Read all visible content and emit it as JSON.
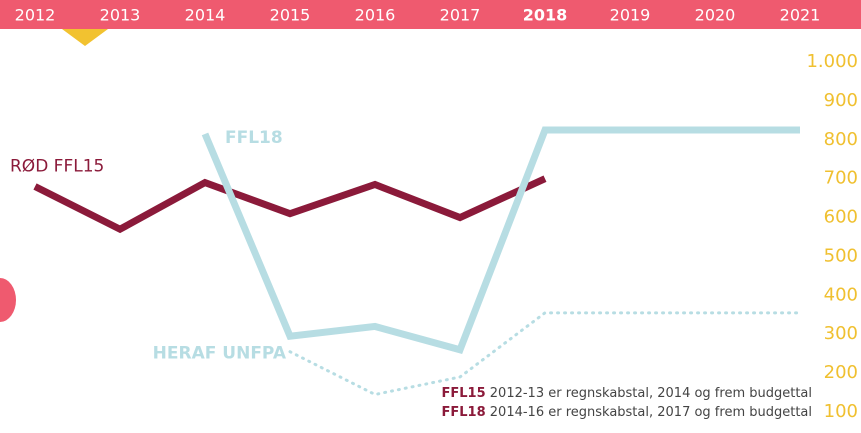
{
  "chart_data": {
    "type": "line",
    "categories": [
      "2012",
      "2013",
      "2014",
      "2015",
      "2016",
      "2017",
      "2018",
      "2019",
      "2020",
      "2021"
    ],
    "highlight": "2018",
    "series": [
      {
        "name": "RØD FFL15",
        "color": "#8b1a3a",
        "style": "solid",
        "values": [
          680,
          570,
          690,
          610,
          685,
          600,
          700,
          null,
          null,
          null
        ]
      },
      {
        "name": "FFL18",
        "color": "#b7dde3",
        "style": "solid",
        "values": [
          null,
          null,
          815,
          295,
          320,
          260,
          825,
          825,
          825,
          825
        ]
      },
      {
        "name": "HERAF UNFPA",
        "color": "#b7dde3",
        "style": "dotted",
        "values": [
          null,
          null,
          null,
          255,
          145,
          190,
          355,
          355,
          355,
          355
        ]
      }
    ],
    "ylim": [
      100,
      1000
    ],
    "yticks": [
      {
        "value": 1000,
        "label": "1.000"
      },
      900,
      800,
      700,
      600,
      500,
      400,
      300,
      200,
      100
    ],
    "notes": [
      {
        "key": "FFL15",
        "text": " 2012-13 er regnskabstal, 2014 og frem budgettal"
      },
      {
        "key": "FFL18",
        "text": " 2014-16 er regnskabstal, 2017 og frem budgettal"
      }
    ]
  }
}
